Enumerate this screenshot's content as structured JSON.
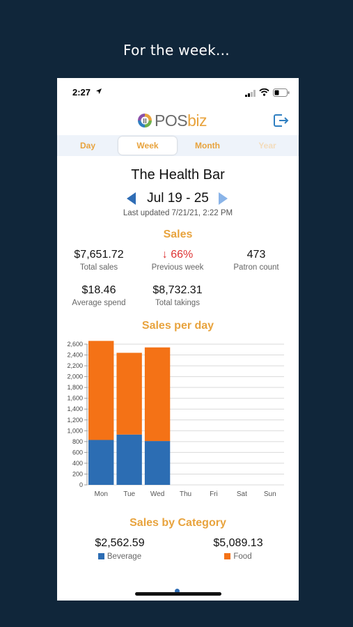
{
  "caption": "For the week...",
  "status_bar": {
    "time": "2:27"
  },
  "app": {
    "logo_pos": "POS",
    "logo_biz": "biz"
  },
  "tabs": [
    {
      "label": "Day"
    },
    {
      "label": "Week"
    },
    {
      "label": "Month"
    },
    {
      "label": "Year"
    }
  ],
  "venue": {
    "name": "The Health Bar"
  },
  "date_range": "Jul 19 - 25",
  "last_updated": "Last updated 7/21/21, 2:22 PM",
  "sales": {
    "title": "Sales",
    "total_sales": {
      "value": "$7,651.72",
      "label": "Total sales"
    },
    "previous_week": {
      "arrow": "↓",
      "value": "66%",
      "label": "Previous week"
    },
    "patron_count": {
      "value": "473",
      "label": "Patron count"
    },
    "average_spend": {
      "value": "$18.46",
      "label": "Average spend"
    },
    "total_takings": {
      "value": "$8,732.31",
      "label": "Total takings"
    }
  },
  "sales_per_day_title": "Sales per day",
  "chart_data": {
    "type": "bar",
    "stacked": true,
    "categories": [
      "Mon",
      "Tue",
      "Wed",
      "Thu",
      "Fri",
      "Sat",
      "Sun"
    ],
    "series": [
      {
        "name": "Beverage",
        "color": "#2c6db3",
        "values": [
          830,
          930,
          810,
          0,
          0,
          0,
          0
        ]
      },
      {
        "name": "Food",
        "color": "#f47216",
        "values": [
          1830,
          1510,
          1730,
          0,
          0,
          0,
          0
        ]
      }
    ],
    "ylim": [
      0,
      2600
    ],
    "yticks": [
      0,
      200,
      400,
      600,
      800,
      1000,
      1200,
      1400,
      1600,
      1800,
      2000,
      2200,
      2400,
      2600
    ],
    "ytick_labels": [
      "0",
      "200",
      "400",
      "600",
      "800",
      "1,000",
      "1,200",
      "1,400",
      "1,600",
      "1,800",
      "2,000",
      "2,200",
      "2,400",
      "2,600"
    ],
    "grid": true
  },
  "sales_by_category": {
    "title": "Sales by Category",
    "beverage": {
      "value": "$2,562.59",
      "label": "Beverage",
      "color": "#2c6db3"
    },
    "food": {
      "value": "$5,089.13",
      "label": "Food",
      "color": "#f47216"
    }
  }
}
